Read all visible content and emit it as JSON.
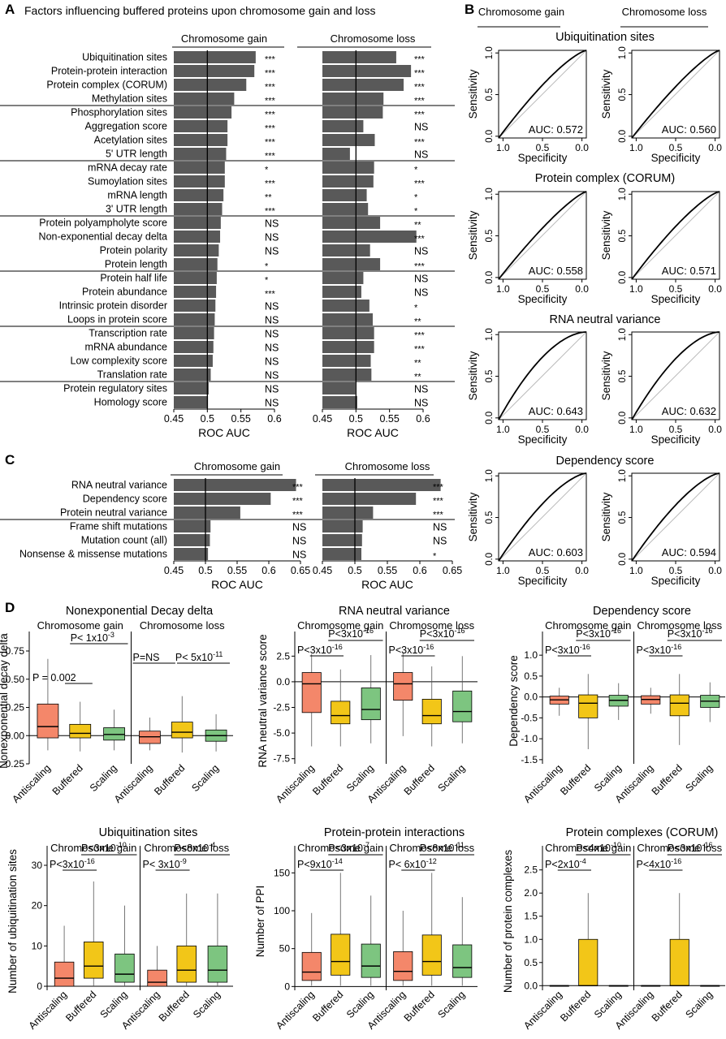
{
  "panel_letters": [
    "A",
    "B",
    "C",
    "D"
  ],
  "chart_data": [
    {
      "id": "A",
      "type": "bar",
      "orientation": "horizontal",
      "title": "Factors influencing buffered proteins upon chromosome gain and loss",
      "xlabel": "ROC AUC",
      "xlim": [
        0.45,
        0.6
      ],
      "xticks": [
        "0.45",
        "0.5",
        "0.55",
        "0.6"
      ],
      "reference_line": 0.5,
      "group_separators_after": [
        3,
        7,
        11,
        15,
        19,
        23
      ],
      "categories": [
        "Ubiquitination sites",
        "Protein-protein interaction",
        "Protein complex (CORUM)",
        "Methylation sites",
        "Phosphorylation sites",
        "Aggregation score",
        "Acetylation sites",
        "5' UTR length",
        "mRNA decay rate",
        "Sumoylation sites",
        "mRNA length",
        "3' UTR length",
        "Protein polyampholyte score",
        "Non-exponential decay delta",
        "Protein polarity",
        "Protein length",
        "Protein half life",
        "Protein abundance",
        "Intrinsic protein disorder",
        "Loops in protein score",
        "Transcription rate",
        "mRNA abundance",
        "Low complexity score",
        "Translation rate",
        "Protein regulatory sites",
        "Homology score"
      ],
      "series": [
        {
          "name": "Chromosome gain",
          "values": [
            0.572,
            0.57,
            0.558,
            0.54,
            0.536,
            0.53,
            0.53,
            0.528,
            0.526,
            0.526,
            0.524,
            0.522,
            0.52,
            0.519,
            0.517,
            0.515,
            0.514,
            0.513,
            0.512,
            0.511,
            0.51,
            0.509,
            0.508,
            0.505,
            0.502,
            0.501
          ],
          "significance": [
            "***",
            "***",
            "***",
            "***",
            "***",
            "***",
            "***",
            "***",
            "*",
            "***",
            "**",
            "***",
            "NS",
            "NS",
            "NS",
            "*",
            "*",
            "***",
            "NS",
            "NS",
            "NS",
            "NS",
            "NS",
            "NS",
            "NS",
            "NS"
          ]
        },
        {
          "name": "Chromosome loss",
          "values": [
            0.56,
            0.582,
            0.571,
            0.541,
            0.54,
            0.511,
            0.528,
            0.491,
            0.527,
            0.526,
            0.516,
            0.518,
            0.536,
            0.59,
            0.521,
            0.536,
            0.511,
            0.508,
            0.52,
            0.525,
            0.527,
            0.527,
            0.522,
            0.523,
            0.499,
            0.502
          ],
          "significance": [
            "***",
            "***",
            "***",
            "***",
            "***",
            "NS",
            "***",
            "NS",
            "*",
            "***",
            "*",
            "*",
            "**",
            "***",
            "NS",
            "***",
            "NS",
            "NS",
            "*",
            "**",
            "***",
            "***",
            "**",
            "**",
            "NS",
            "NS"
          ]
        }
      ]
    },
    {
      "id": "B",
      "type": "line",
      "subtype": "roc",
      "column_headers": [
        "Chromosome gain",
        "Chromosome loss"
      ],
      "xlabel": "Specificity",
      "ylabel": "Sensitivity",
      "xticks": [
        "1.0",
        "0.5",
        "0.0"
      ],
      "yticks": [
        "0.0",
        "0.5",
        "1.0"
      ],
      "auc_prefix": "AUC: ",
      "rows": [
        {
          "title": "Ubiquitination sites",
          "auc": [
            "0.572",
            "0.560"
          ]
        },
        {
          "title": "Protein complex (CORUM)",
          "auc": [
            "0.558",
            "0.571"
          ]
        },
        {
          "title": "RNA neutral variance",
          "auc": [
            "0.643",
            "0.632"
          ]
        },
        {
          "title": "Dependency score",
          "auc": [
            "0.603",
            "0.594"
          ]
        }
      ]
    },
    {
      "id": "C",
      "type": "bar",
      "orientation": "horizontal",
      "xlabel": "ROC AUC",
      "xlim": [
        0.45,
        0.65
      ],
      "xticks": [
        "0.45",
        "0.5",
        "0.55",
        "0.6",
        "0.65"
      ],
      "reference_line": 0.5,
      "group_separators_after": [
        2
      ],
      "categories": [
        "RNA neutral variance",
        "Dependency score",
        "Protein neutral variance",
        "Frame shift mutations",
        "Mutation count (all)",
        "Nonsense & missense mutations"
      ],
      "series": [
        {
          "name": "Chromosome gain",
          "values": [
            0.643,
            0.603,
            0.555,
            0.508,
            0.507,
            0.504
          ],
          "significance": [
            "***",
            "***",
            "***",
            "NS",
            "NS",
            "NS"
          ]
        },
        {
          "name": "Chromosome loss",
          "values": [
            0.632,
            0.594,
            0.528,
            0.512,
            0.511,
            0.51
          ],
          "significance": [
            "***",
            "***",
            "***",
            "NS",
            "NS",
            "*"
          ]
        }
      ]
    },
    {
      "id": "D1",
      "type": "box",
      "title": "Nonexponential Decay delta",
      "ylabel": "Nonexponential decay delta",
      "ylim": [
        -0.25,
        0.75
      ],
      "yticks": [
        "-0.25",
        "0.00",
        "0.25",
        "0.50",
        "0.75"
      ],
      "zero_line": true,
      "groups": [
        "Chromosome gain",
        "Chromosome loss"
      ],
      "categories": [
        "Antiscaling",
        "Buffered",
        "Scaling"
      ],
      "boxes": [
        [
          [
            -0.13,
            -0.02,
            0.08,
            0.28,
            0.68
          ],
          [
            -0.14,
            -0.02,
            0.02,
            0.1,
            0.3
          ],
          [
            -0.13,
            -0.04,
            0.01,
            0.07,
            0.23
          ]
        ],
        [
          [
            -0.13,
            -0.07,
            -0.01,
            0.04,
            0.16
          ],
          [
            -0.15,
            -0.02,
            0.03,
            0.12,
            0.35
          ],
          [
            -0.14,
            -0.05,
            0.0,
            0.05,
            0.19
          ]
        ]
      ],
      "pvalues": [
        [
          "P = 0.002",
          "P< 1x10",
          "-3"
        ],
        [
          "P=NS",
          "P< 5x10",
          "-11"
        ]
      ]
    },
    {
      "id": "D2",
      "type": "box",
      "title": "RNA neutral variance",
      "ylabel": "RNA neutral variance score",
      "ylim": [
        -8,
        3
      ],
      "yticks": [
        "2.5",
        "0.0",
        "-2.5",
        "-5.0",
        "-7.5"
      ],
      "zero_line": true,
      "groups": [
        "Chromosome gain",
        "Chromosome loss"
      ],
      "categories": [
        "Antiscaling",
        "Buffered",
        "Scaling"
      ],
      "boxes": [
        [
          [
            -6.3,
            -3.0,
            -0.2,
            0.9,
            2.7
          ],
          [
            -6.3,
            -4.1,
            -3.3,
            -1.9,
            1.2
          ],
          [
            -6.0,
            -3.7,
            -2.7,
            -0.6,
            2.6
          ]
        ],
        [
          [
            -5.3,
            -1.8,
            -0.2,
            0.9,
            2.8
          ],
          [
            -6.3,
            -4.1,
            -3.3,
            -1.7,
            1.5
          ],
          [
            -6.0,
            -3.9,
            -2.9,
            -0.9,
            2.5
          ]
        ]
      ],
      "pvalues": [
        [
          "P<3x10",
          "-16",
          "P<3x10",
          "-16"
        ],
        [
          "P<3x10",
          "-16",
          "P<3x10",
          "-16"
        ]
      ]
    },
    {
      "id": "D3",
      "type": "box",
      "title": "Dependency score",
      "ylabel": "Dependency score",
      "ylim": [
        -1.6,
        1.1
      ],
      "yticks": [
        "1.0",
        "0.5",
        "0.0",
        "-0.5",
        "-1.0",
        "-1.5"
      ],
      "zero_line": true,
      "groups": [
        "Chromosome gain",
        "Chromosome loss"
      ],
      "categories": [
        "Antiscaling",
        "Buffered",
        "Scaling"
      ],
      "boxes": [
        [
          [
            -0.45,
            -0.17,
            -0.07,
            0.02,
            0.22
          ],
          [
            -1.25,
            -0.5,
            -0.15,
            0.05,
            0.55
          ],
          [
            -0.55,
            -0.22,
            -0.08,
            0.04,
            0.33
          ]
        ],
        [
          [
            -0.4,
            -0.17,
            -0.06,
            0.03,
            0.22
          ],
          [
            -1.15,
            -0.45,
            -0.15,
            0.05,
            0.55
          ],
          [
            -0.6,
            -0.25,
            -0.1,
            0.04,
            0.35
          ]
        ]
      ],
      "pvalues": [
        [
          "P<3x10",
          "-16",
          "P<3x10",
          "-16"
        ],
        [
          "P<3x10",
          "-16",
          "P<3x10",
          "-16"
        ]
      ]
    },
    {
      "id": "D4",
      "type": "box",
      "title": "Ubiquitination sites",
      "ylabel": "Number of ubiquitination sites",
      "ylim": [
        -1,
        30
      ],
      "yticks": [
        "0",
        "10",
        "20",
        "30"
      ],
      "zero_line": true,
      "groups": [
        "Chromosome gain",
        "Chromosome loss"
      ],
      "categories": [
        "Antiscaling",
        "Buffered",
        "Scaling"
      ],
      "boxes": [
        [
          [
            0,
            0,
            2,
            6,
            15
          ],
          [
            0,
            2,
            5,
            11,
            26
          ],
          [
            0,
            1,
            3,
            8,
            20
          ]
        ],
        [
          [
            0,
            0,
            1,
            4,
            10
          ],
          [
            0,
            1,
            4,
            10,
            23
          ],
          [
            0,
            1,
            4,
            10,
            23
          ]
        ]
      ],
      "pvalues": [
        [
          "P<3x10",
          "-16",
          "P<3x10",
          "-10"
        ],
        [
          "P< 3x10",
          "-9",
          "P<8x10",
          "-4"
        ]
      ]
    },
    {
      "id": "D5",
      "type": "box",
      "title": "Protein-protein interactions",
      "ylabel": "Number of PPI",
      "ylim": [
        -5,
        160
      ],
      "yticks": [
        "150",
        "100",
        "50",
        "0"
      ],
      "zero_line": false,
      "groups": [
        "Chromosome gain",
        "Chromosome loss"
      ],
      "categories": [
        "Antiscaling",
        "Buffered",
        "Scaling"
      ],
      "boxes": [
        [
          [
            1,
            8,
            19,
            45,
            97
          ],
          [
            1,
            15,
            33,
            69,
            150
          ],
          [
            1,
            12,
            27,
            56,
            120
          ]
        ],
        [
          [
            1,
            8,
            20,
            46,
            100
          ],
          [
            1,
            15,
            33,
            68,
            150
          ],
          [
            1,
            12,
            25,
            55,
            118
          ]
        ]
      ],
      "pvalues": [
        [
          "P<9x10",
          "-14",
          "P<3x10",
          "-7"
        ],
        [
          "P< 6x10",
          "-12",
          "P<8x10",
          "-11"
        ]
      ]
    },
    {
      "id": "D6",
      "type": "box",
      "title": "Protein complexes (CORUM)",
      "ylabel": "Number of protein complexes",
      "ylim": [
        -0.1,
        2.6
      ],
      "yticks": [
        "2.5",
        "2.0",
        "1.5",
        "1.0",
        "0.5",
        "0.0"
      ],
      "zero_line": false,
      "groups": [
        "Chromosome gain",
        "Chromosome loss"
      ],
      "categories": [
        "Antiscaling",
        "Buffered",
        "Scaling"
      ],
      "boxes": [
        [
          [
            0,
            0,
            0,
            0,
            0
          ],
          [
            0,
            0,
            0,
            1,
            2
          ],
          [
            0,
            0,
            0,
            0,
            0
          ]
        ],
        [
          [
            0,
            0,
            0,
            0,
            0
          ],
          [
            0,
            0,
            0,
            1,
            2
          ],
          [
            0,
            0,
            0,
            0,
            0
          ]
        ]
      ],
      "pvalues": [
        [
          "P<2x10",
          "-4",
          "P<4x10",
          "-10"
        ],
        [
          "P<4x10",
          "-16",
          "P<3x10",
          "-16"
        ]
      ]
    }
  ],
  "colors": {
    "bar": "#595959",
    "antiscaling": "#f4876a",
    "buffered": "#f2c618",
    "scaling": "#7dc580",
    "roc_line": "#000000",
    "diagonal": "#bbbbbb",
    "separator": "#000000"
  }
}
